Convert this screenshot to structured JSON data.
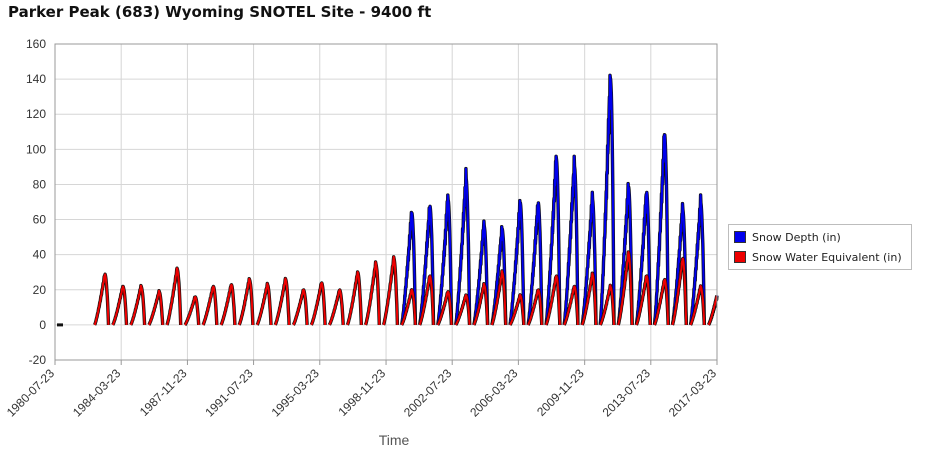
{
  "chart_data": {
    "type": "line",
    "title": "Parker Peak (683) Wyoming  SNOTEL Site - 9400 ft",
    "xlabel": "Time",
    "ylabel": "",
    "ylim": [
      -20,
      160
    ],
    "xlim": [
      "1980-07-23",
      "2017-03-23"
    ],
    "y_ticks": [
      "160",
      "140",
      "120",
      "100",
      "80",
      "60",
      "40",
      "20",
      "0",
      "-20"
    ],
    "x_tick_labels": [
      "1980-07-23",
      "1984-03-23",
      "1987-11-23",
      "1991-07-23",
      "1995-03-23",
      "1998-11-23",
      "2002-07-23",
      "2006-03-23",
      "2009-11-23",
      "2013-07-23",
      "2017-03-23"
    ],
    "grid": true,
    "legend": "right",
    "series": [
      {
        "name": "Snow Depth (in)",
        "color": "#0000ee",
        "annual_peaks": [
          {
            "year": 2000,
            "value": 64
          },
          {
            "year": 2001,
            "value": 68
          },
          {
            "year": 2002,
            "value": 72
          },
          {
            "year": 2003,
            "value": 84
          },
          {
            "year": 2004,
            "value": 57
          },
          {
            "year": 2005,
            "value": 55
          },
          {
            "year": 2006,
            "value": 70
          },
          {
            "year": 2007,
            "value": 70
          },
          {
            "year": 2008,
            "value": 95
          },
          {
            "year": 2009,
            "value": 91
          },
          {
            "year": 2010,
            "value": 72
          },
          {
            "year": 2011,
            "value": 141
          },
          {
            "year": 2012,
            "value": 79
          },
          {
            "year": 2013,
            "value": 76
          },
          {
            "year": 2014,
            "value": 109
          },
          {
            "year": 2015,
            "value": 66
          },
          {
            "year": 2016,
            "value": 70
          },
          {
            "year": 2017,
            "value": 20
          }
        ]
      },
      {
        "name": "Snow Water Equivalent (in)",
        "color": "#ee0000",
        "annual_peaks": [
          {
            "year": 1983,
            "value": 29
          },
          {
            "year": 1984,
            "value": 22
          },
          {
            "year": 1985,
            "value": 22
          },
          {
            "year": 1986,
            "value": 19
          },
          {
            "year": 1987,
            "value": 32
          },
          {
            "year": 1988,
            "value": 16
          },
          {
            "year": 1989,
            "value": 22
          },
          {
            "year": 1990,
            "value": 23
          },
          {
            "year": 1991,
            "value": 26
          },
          {
            "year": 1992,
            "value": 23
          },
          {
            "year": 1993,
            "value": 26
          },
          {
            "year": 1994,
            "value": 20
          },
          {
            "year": 1995,
            "value": 24
          },
          {
            "year": 1996,
            "value": 20
          },
          {
            "year": 1997,
            "value": 30
          },
          {
            "year": 1998,
            "value": 35
          },
          {
            "year": 1999,
            "value": 38
          },
          {
            "year": 2000,
            "value": 20
          },
          {
            "year": 2001,
            "value": 28
          },
          {
            "year": 2002,
            "value": 19
          },
          {
            "year": 2003,
            "value": 17
          },
          {
            "year": 2004,
            "value": 23
          },
          {
            "year": 2005,
            "value": 30
          },
          {
            "year": 2006,
            "value": 17
          },
          {
            "year": 2007,
            "value": 20
          },
          {
            "year": 2008,
            "value": 28
          },
          {
            "year": 2009,
            "value": 22
          },
          {
            "year": 2010,
            "value": 29
          },
          {
            "year": 2011,
            "value": 22
          },
          {
            "year": 2012,
            "value": 41
          },
          {
            "year": 2013,
            "value": 28
          },
          {
            "year": 2014,
            "value": 26
          },
          {
            "year": 2015,
            "value": 38
          },
          {
            "year": 2016,
            "value": 22
          },
          {
            "year": 2017,
            "value": 21
          }
        ]
      }
    ]
  }
}
